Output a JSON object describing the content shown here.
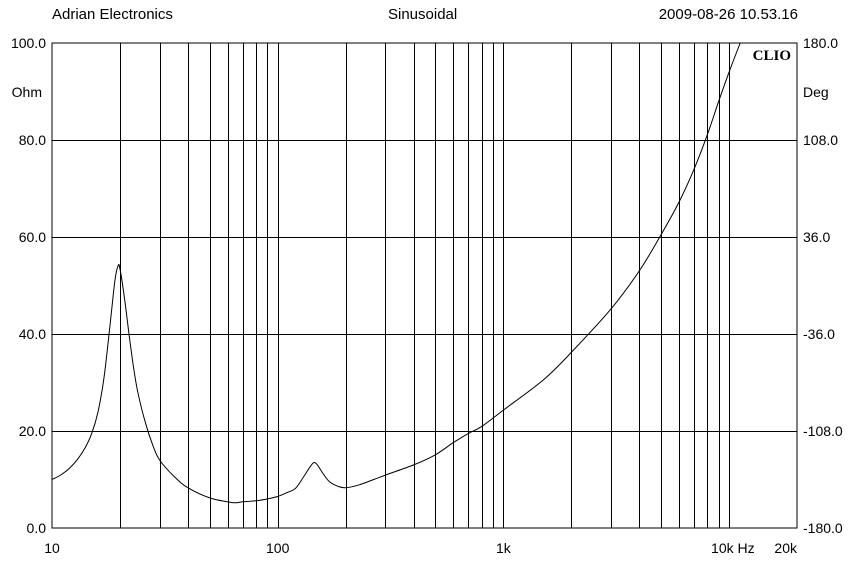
{
  "header": {
    "left": "Adrian Electronics",
    "center": "Sinusoidal",
    "right": "2009-08-26 10.53.16"
  },
  "chart_data": {
    "type": "line",
    "brand": "CLIO",
    "x_scale": "log",
    "xlim": [
      10,
      20000
    ],
    "x_ticks": [
      {
        "value": 10,
        "label": "10"
      },
      {
        "value": 100,
        "label": "100"
      },
      {
        "value": 1000,
        "label": "1k"
      },
      {
        "value": 10000,
        "label": "10k Hz"
      },
      {
        "value": 20000,
        "label": "20k"
      }
    ],
    "grid": true,
    "y_left": {
      "unit": "Ohm",
      "ylim": [
        0,
        100
      ],
      "ticks": [
        "0.0",
        "20.0",
        "40.0",
        "60.0",
        "80.0",
        "100.0"
      ]
    },
    "y_right": {
      "unit": "Deg",
      "ylim": [
        -180,
        180
      ],
      "ticks": [
        "-180.0",
        "-108.0",
        "-36.0",
        "36.0",
        "108.0",
        "180.0"
      ]
    },
    "series": [
      {
        "color": "#000000",
        "axis": "left",
        "points": [
          [
            10,
            10.0
          ],
          [
            11,
            11.0
          ],
          [
            12,
            12.4
          ],
          [
            13,
            14.2
          ],
          [
            14,
            16.5
          ],
          [
            15,
            19.5
          ],
          [
            16,
            24.0
          ],
          [
            17,
            31.0
          ],
          [
            18,
            41.0
          ],
          [
            19,
            51.0
          ],
          [
            19.6,
            54.0
          ],
          [
            20,
            53.5
          ],
          [
            21,
            47.0
          ],
          [
            22,
            39.5
          ],
          [
            23,
            33.0
          ],
          [
            24,
            28.0
          ],
          [
            26,
            21.5
          ],
          [
            28,
            17.0
          ],
          [
            30,
            14.0
          ],
          [
            35,
            10.5
          ],
          [
            40,
            8.3
          ],
          [
            50,
            6.2
          ],
          [
            60,
            5.4
          ],
          [
            65,
            5.2
          ],
          [
            70,
            5.4
          ],
          [
            80,
            5.6
          ],
          [
            90,
            6.0
          ],
          [
            100,
            6.5
          ],
          [
            110,
            7.3
          ],
          [
            120,
            8.2
          ],
          [
            130,
            10.5
          ],
          [
            140,
            12.8
          ],
          [
            145,
            13.5
          ],
          [
            150,
            13.0
          ],
          [
            160,
            11.0
          ],
          [
            170,
            9.5
          ],
          [
            185,
            8.6
          ],
          [
            200,
            8.3
          ],
          [
            230,
            8.9
          ],
          [
            300,
            10.9
          ],
          [
            400,
            13.0
          ],
          [
            500,
            15.1
          ],
          [
            600,
            17.6
          ],
          [
            700,
            19.5
          ],
          [
            800,
            20.9
          ],
          [
            1000,
            24.3
          ],
          [
            1500,
            30.5
          ],
          [
            2000,
            36.2
          ],
          [
            3000,
            45.2
          ],
          [
            4000,
            53.0
          ],
          [
            5000,
            60.5
          ],
          [
            6000,
            67.2
          ],
          [
            7000,
            74.0
          ],
          [
            8000,
            81.0
          ],
          [
            9000,
            88.0
          ],
          [
            10000,
            94.0
          ],
          [
            11200,
            100.0
          ]
        ]
      }
    ]
  }
}
